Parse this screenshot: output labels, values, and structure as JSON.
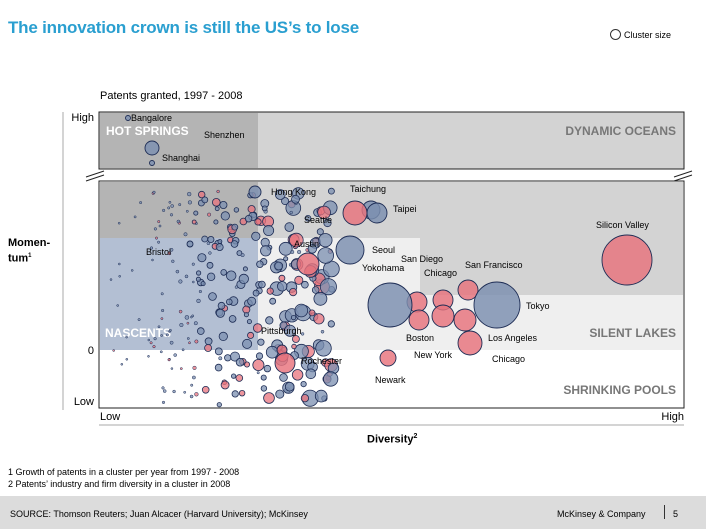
{
  "header": {
    "title": "The innovation crown is still the US’s to lose",
    "legend_label": "Cluster size"
  },
  "chart_data": {
    "type": "scatter",
    "title": "Patents granted, 1997 - 2008",
    "xlabel": "Diversity",
    "xlabel_footnote": "2",
    "ylabel": "Momen-tum",
    "ylabel_line1": "Momen-",
    "ylabel_line2": "tum",
    "ylabel_footnote": "1",
    "x_ticks": {
      "low": "Low",
      "high": "High"
    },
    "y_ticks": {
      "high": "High",
      "zero": "0",
      "low": "Low"
    },
    "axis_break": true,
    "xlim": [
      0,
      100
    ],
    "ylim": [
      -10,
      45
    ],
    "series_colors": {
      "us": "#e8737c",
      "non_us": "#7b8fb0"
    },
    "quadrants": [
      {
        "name": "HOT SPRINGS",
        "color": "#b4b4b4"
      },
      {
        "name": "DYNAMIC OCEANS",
        "color": "#d3d3d3"
      },
      {
        "name": "NASCENTS",
        "color": "#b3bfd3"
      },
      {
        "name": "SILENT LAKES",
        "color": "#ececec"
      },
      {
        "name": "SHRINKING POOLS",
        "color": "#ffffff"
      }
    ],
    "labeled_clusters": [
      {
        "name": "Bangalore",
        "region": "non_us",
        "x": 48,
        "y": 42,
        "size": 1
      },
      {
        "name": "Shenzhen",
        "region": "non_us",
        "x": 48,
        "y": 36,
        "size": 4
      },
      {
        "name": "Shanghai",
        "region": "non_us",
        "x": 48,
        "y": 33,
        "size": 2
      },
      {
        "name": "Hong Kong",
        "region": "non_us",
        "x": 37,
        "y": 24,
        "size": 4
      },
      {
        "name": "Taichung",
        "region": "non_us",
        "x": 47,
        "y": 21,
        "size": 5
      },
      {
        "name": "Taipei",
        "region": "non_us",
        "x": 49,
        "y": 21,
        "size": 6
      },
      {
        "name": "Seattle",
        "region": "us",
        "x": 46,
        "y": 20,
        "size": 6
      },
      {
        "name": "Silicon Valley",
        "region": "us",
        "x": 87,
        "y": 14,
        "size": 10
      },
      {
        "name": "Austin",
        "region": "us",
        "x": 35,
        "y": 14,
        "size": 5
      },
      {
        "name": "Seoul",
        "region": "non_us",
        "x": 46,
        "y": 16,
        "size": 6
      },
      {
        "name": "Bristol",
        "region": "non_us",
        "x": 15,
        "y": 16,
        "size": 1
      },
      {
        "name": "San Diego",
        "region": "us",
        "x": 53,
        "y": 9,
        "size": 5
      },
      {
        "name": "Yokohama",
        "region": "non_us",
        "x": 50,
        "y": 9,
        "size": 8
      },
      {
        "name": "Chicago",
        "region": "us",
        "x": 57,
        "y": 9,
        "size": 4
      },
      {
        "name": "San Francisco",
        "region": "us",
        "x": 61,
        "y": 11,
        "size": 4
      },
      {
        "name": "Tokyo",
        "region": "non_us",
        "x": 66,
        "y": 8,
        "size": 9
      },
      {
        "name": "Pittsburgh",
        "region": "us",
        "x": 26,
        "y": 1,
        "size": 2
      },
      {
        "name": "Boston",
        "region": "us",
        "x": 54,
        "y": 7,
        "size": 4
      },
      {
        "name": "Los Angeles",
        "region": "us",
        "x": 61,
        "y": 5,
        "size": 4
      },
      {
        "name": "New York",
        "region": "us",
        "x": 57,
        "y": 6,
        "size": 4
      },
      {
        "name": "Rochester",
        "region": "us",
        "x": 31,
        "y": -2,
        "size": 4
      },
      {
        "name": "Newark",
        "region": "us",
        "x": 48,
        "y": -4,
        "size": 3
      },
      {
        "name": "Chicago (2)",
        "region": "us",
        "x": 61,
        "y": 2,
        "size": 5
      }
    ]
  },
  "footnotes": [
    "1 Growth of patents in a cluster per year from 1997 - 2008",
    "2 Patents’ industry and firm diversity in a cluster in 2008"
  ],
  "footer": {
    "source": "SOURCE:  Thomson Reuters; Juan Alcacer (Harvard University); McKinsey",
    "brand": "McKinsey & Company",
    "page": "5"
  }
}
